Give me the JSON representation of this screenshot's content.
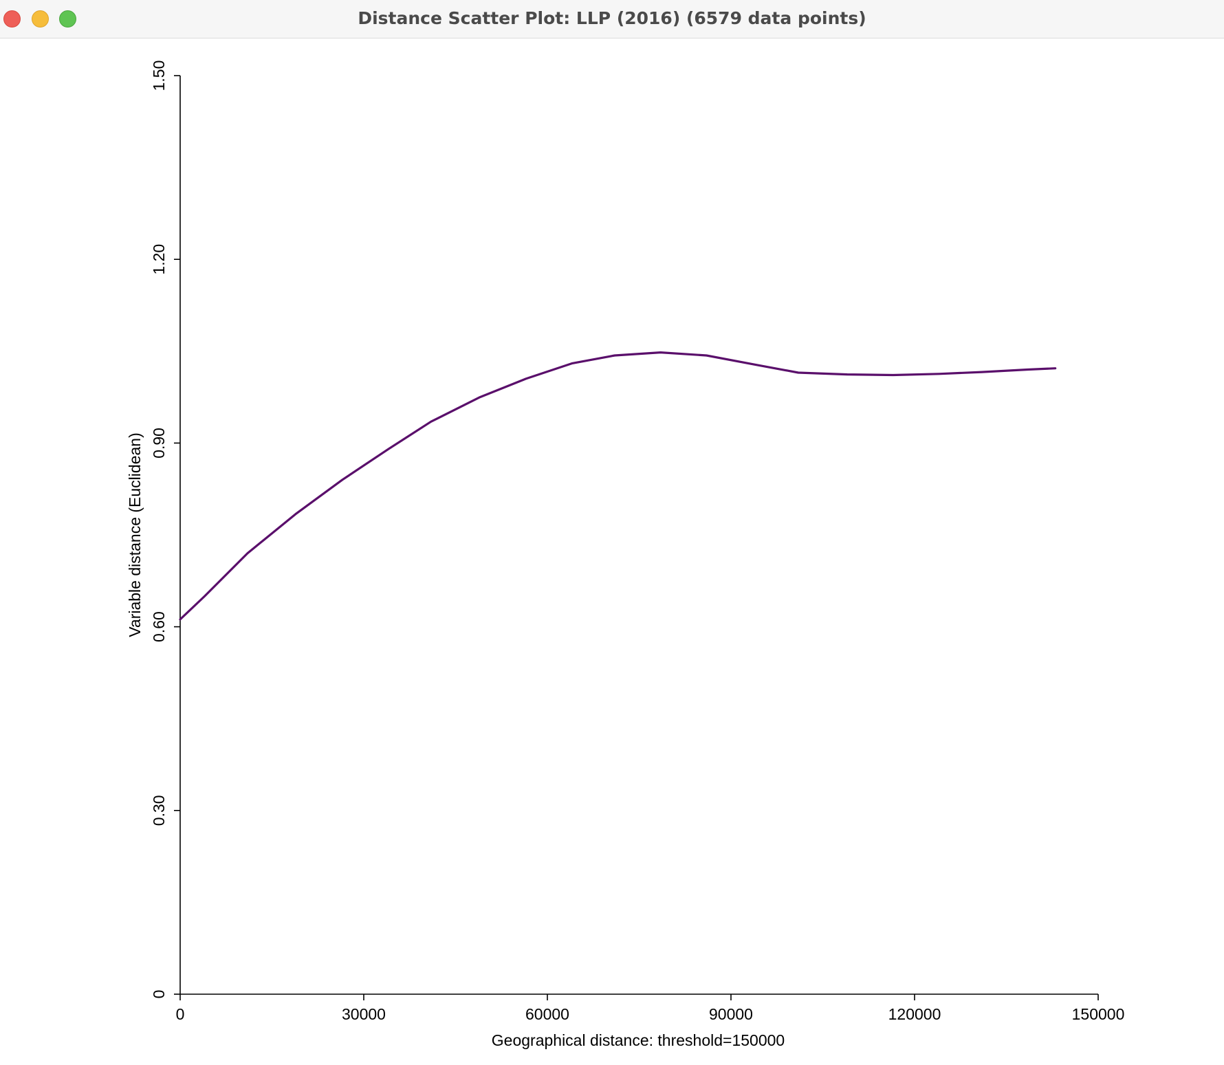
{
  "window": {
    "title": "Distance Scatter Plot: LLP (2016) (6579 data points)",
    "buttons": [
      "close-button",
      "minimize-button",
      "zoom-button"
    ]
  },
  "colors": {
    "line": "#5a0f6b",
    "axis": "#000000",
    "titlebar": "#f6f6f6"
  },
  "chart_data": {
    "type": "line",
    "title": "",
    "xlabel": "Geographical distance: threshold=150000",
    "ylabel": "Variable distance (Euclidean)",
    "xlim": [
      0,
      150000
    ],
    "ylim": [
      0,
      1.5
    ],
    "x_ticks": [
      0,
      30000,
      60000,
      90000,
      120000,
      150000
    ],
    "x_tick_labels": [
      "0",
      "30000",
      "60000",
      "90000",
      "120000",
      "150000"
    ],
    "y_ticks": [
      0,
      0.3,
      0.6,
      0.9,
      1.2,
      1.5
    ],
    "y_tick_labels": [
      "0",
      "0.30",
      "0.60",
      "0.90",
      "1.20",
      "1.50"
    ],
    "grid": false,
    "legend": "none",
    "series": [
      {
        "x": [
          0,
          4000,
          11000,
          19000,
          26500,
          34000,
          41000,
          49000,
          56500,
          64000,
          71000,
          78500,
          86000,
          94000,
          101000,
          109000,
          116500,
          124000,
          131000,
          138500,
          143000
        ],
        "y": [
          0.612,
          0.65,
          0.72,
          0.785,
          0.84,
          0.89,
          0.935,
          0.975,
          1.005,
          1.03,
          1.043,
          1.048,
          1.043,
          1.028,
          1.015,
          1.012,
          1.011,
          1.013,
          1.016,
          1.02,
          1.022
        ]
      }
    ]
  }
}
